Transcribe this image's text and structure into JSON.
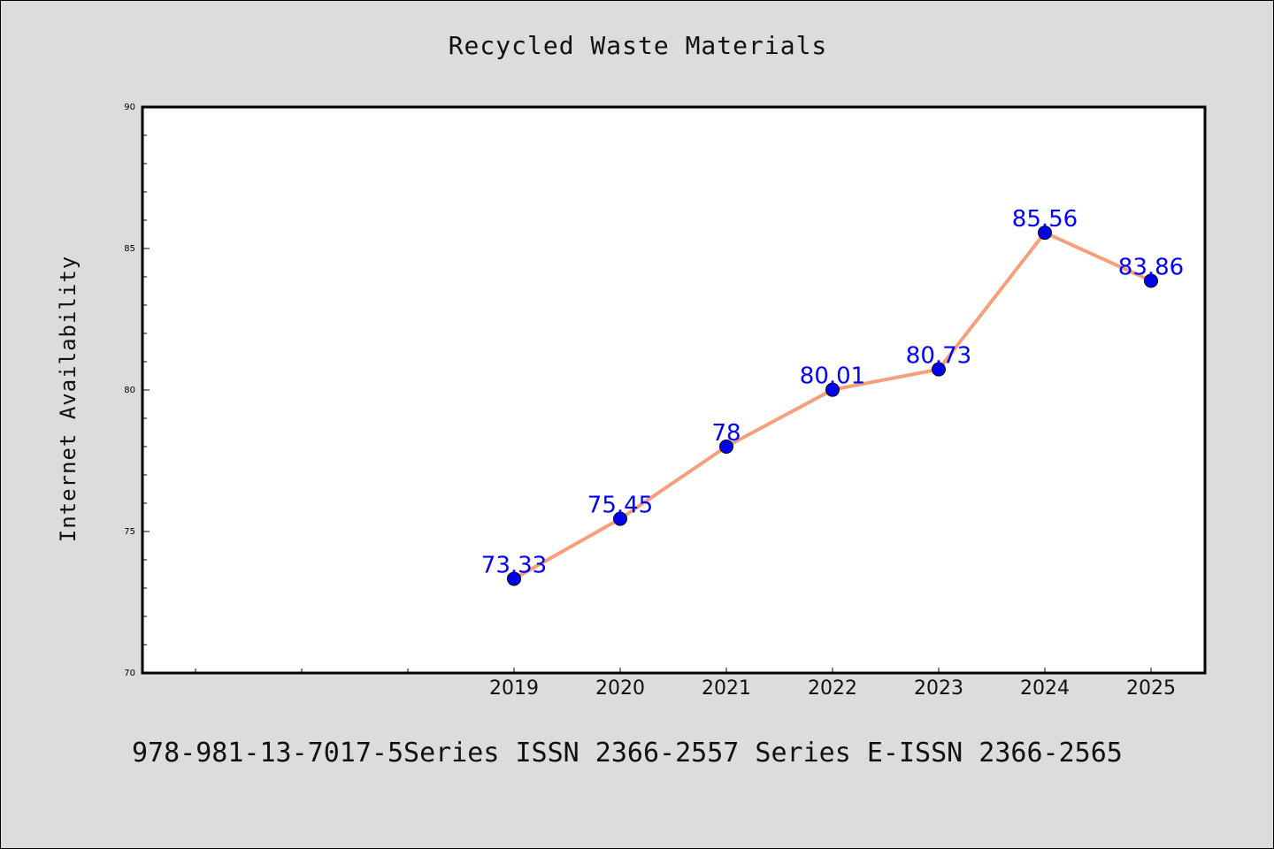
{
  "chart_data": {
    "type": "line",
    "title": "Recycled Waste Materials",
    "xlabel": "",
    "ylabel": "Internet Availability",
    "categories": [
      "2019",
      "2020",
      "2021",
      "2022",
      "2023",
      "2024",
      "2025"
    ],
    "series": [
      {
        "values": [
          73.33,
          75.45,
          78,
          80.01,
          80.73,
          85.56,
          83.86
        ],
        "data_labels": [
          "73.33",
          "75.45",
          "78",
          "80.01",
          "80.73",
          "85.56",
          "83.86"
        ],
        "line_color": "#f4a07c",
        "marker_color": "#0000ee"
      }
    ],
    "ylim": [
      70,
      90
    ],
    "yticks": [
      "70",
      "75",
      "80",
      "85",
      "90"
    ],
    "grid": false,
    "legend": "none"
  },
  "footer": {
    "text": "978-981-13-7017-5Series ISSN 2366-2557 Series E-ISSN 2366-2565"
  }
}
